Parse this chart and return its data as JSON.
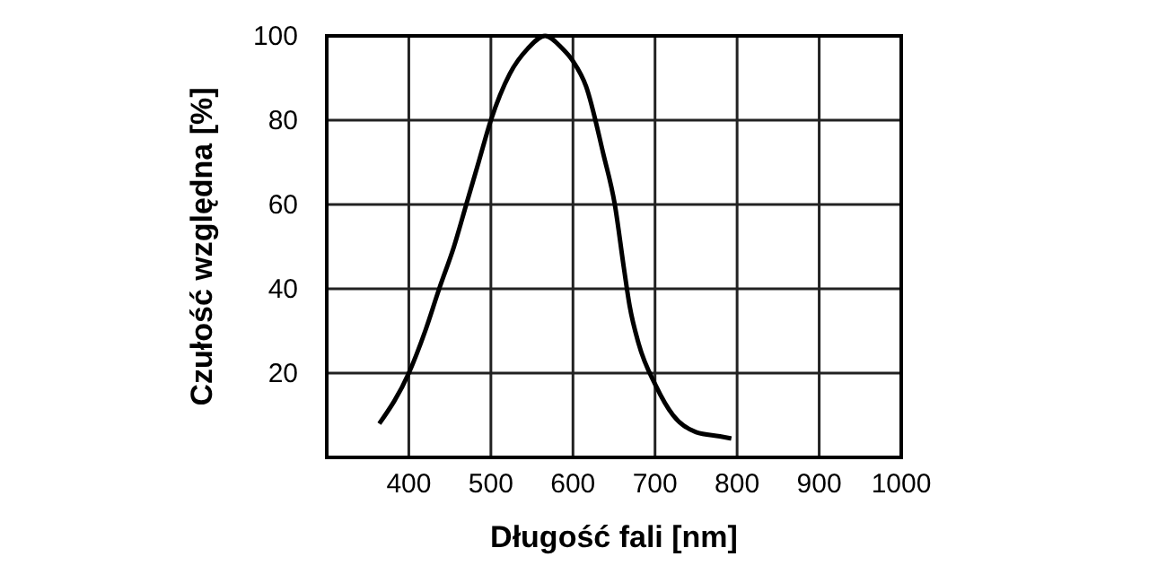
{
  "chart_data": {
    "type": "line",
    "xlabel": "Długość fali [nm]",
    "ylabel": "Czułość względna [%]",
    "x": [
      364,
      400,
      420,
      437,
      455,
      470,
      485,
      500,
      523,
      545,
      566,
      587,
      600,
      616,
      637,
      651,
      662,
      669,
      680,
      701,
      722,
      750,
      779,
      793
    ],
    "series": [
      {
        "color": "#000000",
        "values": [
          8,
          20,
          30,
          40,
          50,
          60,
          70,
          80,
          91,
          97,
          100,
          97,
          94,
          88,
          72,
          60,
          45,
          36,
          27,
          17,
          10,
          6,
          5,
          4.5
        ]
      }
    ],
    "xlim": [
      300,
      1000
    ],
    "xticks": [
      {
        "value": 300,
        "label": null
      },
      400,
      500,
      600,
      700,
      800,
      900,
      1000
    ],
    "ylim": [
      0,
      100
    ],
    "yticks": [
      {
        "value": 0,
        "label": null
      },
      20,
      40,
      60,
      80,
      100
    ],
    "grid": true,
    "marker": "none",
    "line_style": "solid"
  }
}
